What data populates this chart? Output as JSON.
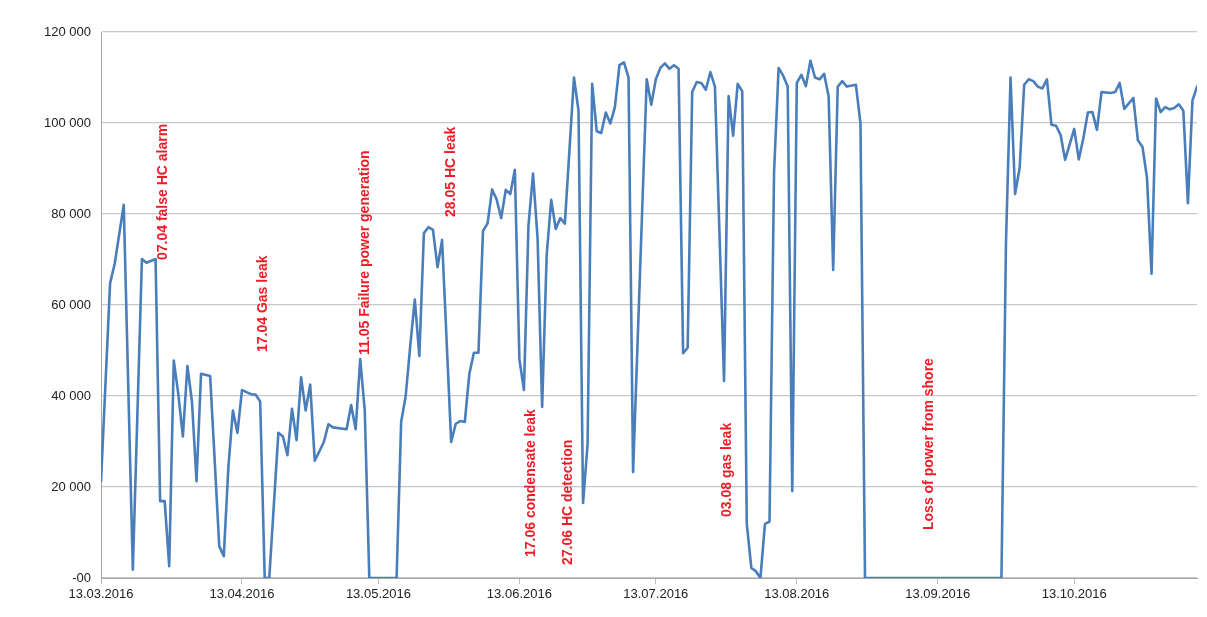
{
  "chart_data": {
    "type": "line",
    "grid": "y",
    "legend": false,
    "xlim": [
      "2016-03-13",
      "2016-11-09"
    ],
    "xticks": [
      {
        "value": "2016-03-13",
        "label": "13.03.2016"
      },
      {
        "value": "2016-04-13",
        "label": "13.04.2016"
      },
      {
        "value": "2016-05-13",
        "label": "13.05.2016"
      },
      {
        "value": "2016-06-13",
        "label": "13.06.2016"
      },
      {
        "value": "2016-07-13",
        "label": "13.07.2016"
      },
      {
        "value": "2016-08-13",
        "label": "13.08.2016"
      },
      {
        "value": "2016-09-13",
        "label": "13.09.2016"
      },
      {
        "value": "2016-10-13",
        "label": "13.10.2016"
      }
    ],
    "ylim": [
      0,
      120000
    ],
    "yticks": [
      {
        "value": 0,
        "label": "-00"
      },
      {
        "value": 20000,
        "label": "20 000"
      },
      {
        "value": 40000,
        "label": "40 000"
      },
      {
        "value": 60000,
        "label": "60 000"
      },
      {
        "value": 80000,
        "label": "80 000"
      },
      {
        "value": 100000,
        "label": "100 000"
      },
      {
        "value": 120000,
        "label": "120 000"
      }
    ],
    "annotations": [
      "07.04 false HC alarm",
      "17.04 Gas leak",
      "11.05 Failure power generation",
      "28.05 HC leak",
      "17.06 condensate leak",
      "27.06 HC detection",
      "03.08 gas leak",
      "Loss of power from shore"
    ],
    "series": [
      {
        "color": "#4a7ebb",
        "x": [
          "2016-03-13",
          "2016-03-15",
          "2016-03-16",
          "2016-03-18",
          "2016-03-20",
          "2016-03-22",
          "2016-03-23",
          "2016-03-25",
          "2016-03-26",
          "2016-03-27",
          "2016-03-28",
          "2016-03-29",
          "2016-03-30",
          "2016-03-31",
          "2016-04-01",
          "2016-04-02",
          "2016-04-03",
          "2016-04-04",
          "2016-04-06",
          "2016-04-07",
          "2016-04-08",
          "2016-04-09",
          "2016-04-10",
          "2016-04-11",
          "2016-04-12",
          "2016-04-13",
          "2016-04-15",
          "2016-04-16",
          "2016-04-17",
          "2016-04-18",
          "2016-04-19",
          "2016-04-21",
          "2016-04-22",
          "2016-04-23",
          "2016-04-24",
          "2016-04-25",
          "2016-04-26",
          "2016-04-27",
          "2016-04-28",
          "2016-04-29",
          "2016-04-30",
          "2016-05-01",
          "2016-05-02",
          "2016-05-03",
          "2016-05-06",
          "2016-05-07",
          "2016-05-08",
          "2016-05-09",
          "2016-05-10",
          "2016-05-11",
          "2016-05-17",
          "2016-05-18",
          "2016-05-19",
          "2016-05-20",
          "2016-05-21",
          "2016-05-22",
          "2016-05-23",
          "2016-05-24",
          "2016-05-25",
          "2016-05-26",
          "2016-05-27",
          "2016-05-29",
          "2016-05-30",
          "2016-05-31",
          "2016-06-01",
          "2016-06-02",
          "2016-06-03",
          "2016-06-04",
          "2016-06-05",
          "2016-06-06",
          "2016-06-07",
          "2016-06-08",
          "2016-06-09",
          "2016-06-10",
          "2016-06-11",
          "2016-06-12",
          "2016-06-13",
          "2016-06-14",
          "2016-06-15",
          "2016-06-16",
          "2016-06-17",
          "2016-06-18",
          "2016-06-19",
          "2016-06-20",
          "2016-06-21",
          "2016-06-22",
          "2016-06-23",
          "2016-06-25",
          "2016-06-26",
          "2016-06-27",
          "2016-06-28",
          "2016-06-29",
          "2016-06-30",
          "2016-07-01",
          "2016-07-02",
          "2016-07-03",
          "2016-07-04",
          "2016-07-05",
          "2016-07-06",
          "2016-07-07",
          "2016-07-08",
          "2016-07-11",
          "2016-07-12",
          "2016-07-13",
          "2016-07-14",
          "2016-07-15",
          "2016-07-16",
          "2016-07-17",
          "2016-07-18",
          "2016-07-19",
          "2016-07-20",
          "2016-07-21",
          "2016-07-22",
          "2016-07-23",
          "2016-07-24",
          "2016-07-25",
          "2016-07-26",
          "2016-07-28",
          "2016-07-29",
          "2016-07-30",
          "2016-07-31",
          "2016-08-01",
          "2016-08-02",
          "2016-08-03",
          "2016-08-04",
          "2016-08-05",
          "2016-08-06",
          "2016-08-07",
          "2016-08-08",
          "2016-08-09",
          "2016-08-10",
          "2016-08-11",
          "2016-08-12",
          "2016-08-13",
          "2016-08-14",
          "2016-08-15",
          "2016-08-16",
          "2016-08-17",
          "2016-08-18",
          "2016-08-19",
          "2016-08-20",
          "2016-08-21",
          "2016-08-22",
          "2016-08-23",
          "2016-08-24",
          "2016-08-26",
          "2016-08-27",
          "2016-08-28",
          "2016-09-27",
          "2016-09-28",
          "2016-09-29",
          "2016-09-30",
          "2016-10-01",
          "2016-10-02",
          "2016-10-03",
          "2016-10-04",
          "2016-10-05",
          "2016-10-06",
          "2016-10-07",
          "2016-10-08",
          "2016-10-09",
          "2016-10-10",
          "2016-10-11",
          "2016-10-13",
          "2016-10-14",
          "2016-10-15",
          "2016-10-16",
          "2016-10-17",
          "2016-10-18",
          "2016-10-19",
          "2016-10-21",
          "2016-10-22",
          "2016-10-23",
          "2016-10-24",
          "2016-10-26",
          "2016-10-27",
          "2016-10-28",
          "2016-10-29",
          "2016-10-30",
          "2016-10-31",
          "2016-11-01",
          "2016-11-02",
          "2016-11-03",
          "2016-11-04",
          "2016-11-05",
          "2016-11-06",
          "2016-11-07",
          "2016-11-08",
          "2016-11-09"
        ],
        "values": [
          21300,
          64800,
          69000,
          82000,
          1800,
          70100,
          69300,
          70100,
          16900,
          16900,
          2600,
          47800,
          40400,
          31100,
          46600,
          38800,
          21300,
          44900,
          44400,
          25800,
          7000,
          4800,
          24200,
          36800,
          31900,
          41300,
          40400,
          40300,
          38800,
          0,
          0,
          31900,
          31100,
          27000,
          37200,
          30300,
          44100,
          36800,
          42500,
          25800,
          27800,
          29900,
          33800,
          33100,
          32700,
          38000,
          32700,
          48100,
          36800,
          0,
          0,
          34300,
          40000,
          51000,
          61200,
          48800,
          75800,
          77100,
          76500,
          68300,
          74300,
          29900,
          33900,
          34500,
          34300,
          44900,
          49500,
          49500,
          76300,
          77900,
          85400,
          83200,
          79100,
          85300,
          84400,
          89700,
          48100,
          41300,
          77500,
          88900,
          74600,
          37600,
          71000,
          83100,
          76700,
          79100,
          77900,
          110000,
          102700,
          16500,
          29500,
          108600,
          98200,
          97800,
          102300,
          99900,
          103500,
          112700,
          113300,
          110000,
          23300,
          109600,
          104000,
          109600,
          112100,
          113100,
          111900,
          112700,
          111900,
          49400,
          50600,
          106800,
          109000,
          108800,
          107300,
          111200,
          108000,
          43300,
          105900,
          97200,
          108600,
          107000,
          11900,
          2200,
          1500,
          0,
          11900,
          12400,
          89300,
          112100,
          110400,
          108000,
          19100,
          108800,
          110600,
          108100,
          113700,
          110000,
          109600,
          110800,
          105900,
          67700,
          108000,
          109200,
          108000,
          108400,
          99900,
          0,
          0,
          73900,
          110000,
          84400,
          90100,
          108400,
          109600,
          109200,
          108000,
          107600,
          109600,
          99600,
          99400,
          97400,
          91900,
          98700,
          92000,
          96600,
          102300,
          102400,
          98500,
          106800,
          106600,
          106800,
          108800,
          103100,
          105500,
          96200,
          94800,
          88000,
          66900,
          105400,
          102400,
          103500,
          103000,
          103300,
          104100,
          102700,
          82400,
          104900,
          108000
        ]
      }
    ]
  }
}
